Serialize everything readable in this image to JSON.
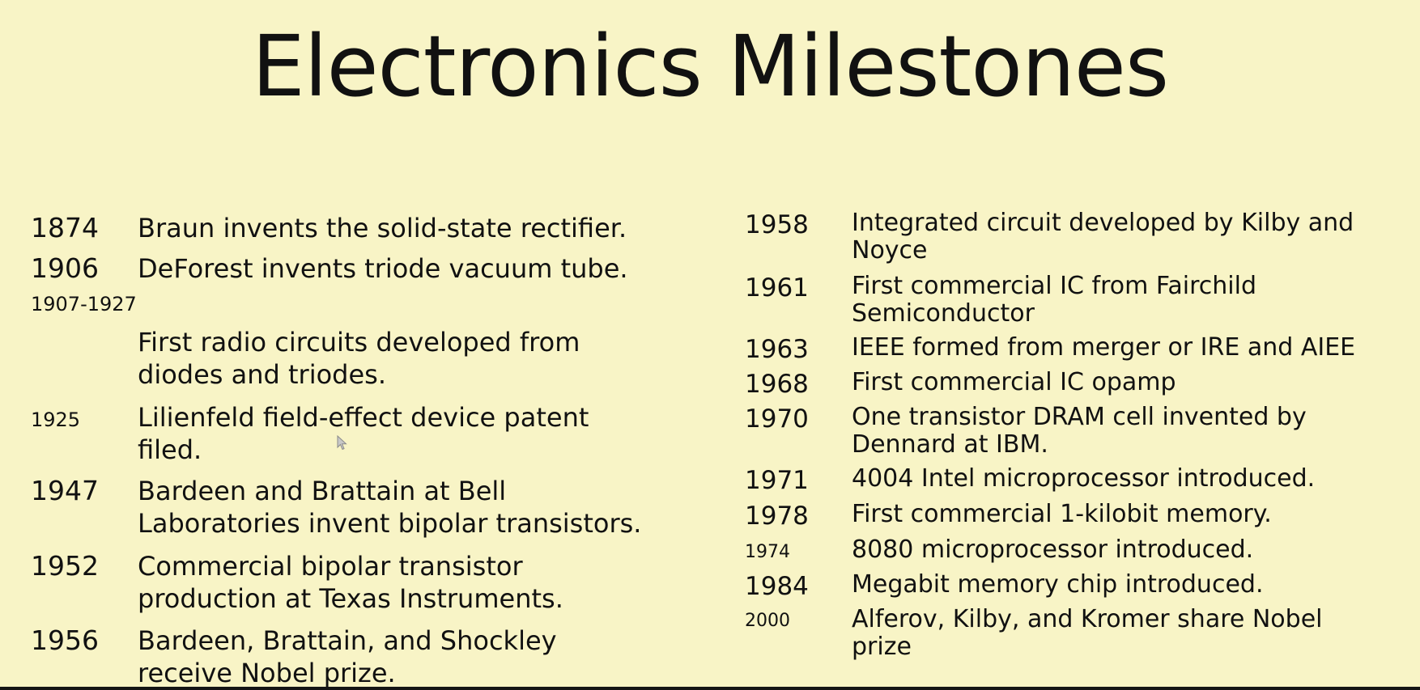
{
  "slide": {
    "title": "Electronics Milestones",
    "background": "#f8f4c6",
    "text_color": "#111111"
  },
  "left_column": [
    {
      "year": "1874",
      "lines": [
        "Braun invents the solid-state rectifier."
      ]
    },
    {
      "year": "1906",
      "lines": [
        "DeForest invents triode vacuum tube."
      ]
    },
    {
      "year": "1907-1927",
      "lines": [
        "First radio circuits developed from",
        "diodes and triodes."
      ]
    },
    {
      "year": "1925",
      "lines": [
        "Lilienfeld field-effect device patent",
        "filed."
      ]
    },
    {
      "year": "1947",
      "lines": [
        "Bardeen and Brattain  at Bell",
        "Laboratories invent bipolar transistors."
      ]
    },
    {
      "year": "1952",
      "lines": [
        "Commercial bipolar transistor",
        "production at Texas Instruments."
      ]
    },
    {
      "year": "1956",
      "lines": [
        "Bardeen, Brattain, and Shockley",
        "receive Nobel prize."
      ]
    }
  ],
  "right_column": [
    {
      "year": "1958",
      "lines": [
        "Integrated circuit developed by Kilby and",
        "Noyce"
      ]
    },
    {
      "year": "1961",
      "lines": [
        "First commercial IC from Fairchild",
        "Semiconductor"
      ]
    },
    {
      "year": "1963",
      "lines": [
        "IEEE formed from merger or IRE and AIEE"
      ]
    },
    {
      "year": "1968",
      "lines": [
        "First commercial IC opamp"
      ]
    },
    {
      "year": "1970",
      "lines": [
        "One transistor DRAM cell invented by",
        "Dennard at IBM."
      ]
    },
    {
      "year": "1971",
      "lines": [
        "4004 Intel microprocessor introduced."
      ]
    },
    {
      "year": "1978",
      "lines": [
        "First commercial 1-kilobit memory."
      ]
    },
    {
      "year": "1974",
      "lines": [
        "8080 microprocessor introduced."
      ]
    },
    {
      "year": "1984",
      "lines": [
        "Megabit memory chip introduced."
      ]
    },
    {
      "year": "2000",
      "lines": [
        "Alferov, Kilby, and Kromer share Nobel",
        "prize"
      ]
    }
  ]
}
